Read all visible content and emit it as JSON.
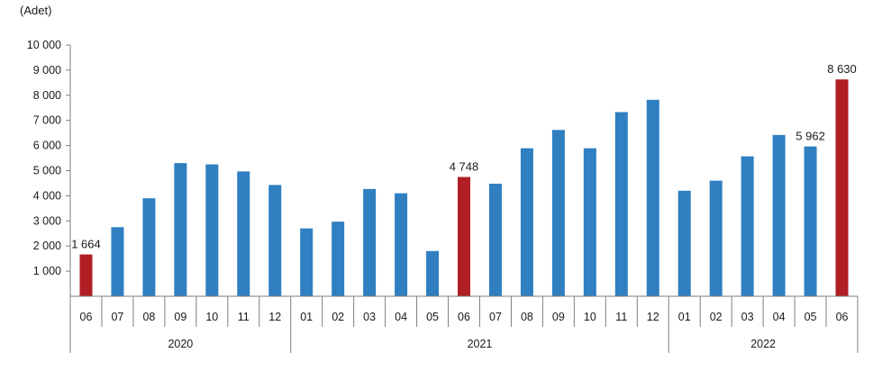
{
  "chart_data": {
    "type": "bar",
    "unit_label": "(Adet)",
    "yticks": [
      "1 000",
      "2 000",
      "3 000",
      "4 000",
      "5 000",
      "6 000",
      "7 000",
      "8 000",
      "9 000",
      "10 000"
    ],
    "ylim": [
      0,
      10000
    ],
    "categories": [
      "06",
      "07",
      "08",
      "09",
      "10",
      "11",
      "12",
      "01",
      "02",
      "03",
      "04",
      "05",
      "06",
      "07",
      "08",
      "09",
      "10",
      "11",
      "12",
      "01",
      "02",
      "03",
      "04",
      "05",
      "06"
    ],
    "values": [
      1664,
      2750,
      3900,
      5300,
      5250,
      4970,
      4430,
      2700,
      2970,
      4270,
      4100,
      1800,
      4748,
      4480,
      5890,
      6620,
      5890,
      7330,
      7820,
      4200,
      4600,
      5570,
      6420,
      5962,
      8630
    ],
    "highlighted": [
      true,
      false,
      false,
      false,
      false,
      false,
      false,
      false,
      false,
      false,
      false,
      false,
      true,
      false,
      false,
      false,
      false,
      false,
      false,
      false,
      false,
      false,
      false,
      false,
      true
    ],
    "data_labels": [
      {
        "index": 0,
        "text": "1 664"
      },
      {
        "index": 12,
        "text": "4 748"
      },
      {
        "index": 23,
        "text": "5 962"
      },
      {
        "index": 24,
        "text": "8 630"
      }
    ],
    "year_groups": [
      {
        "label": "2020",
        "start": 0,
        "end": 6
      },
      {
        "label": "2021",
        "start": 7,
        "end": 18
      },
      {
        "label": "2022",
        "start": 19,
        "end": 24
      }
    ],
    "colors": {
      "bar": "#2f7fc1",
      "highlight": "#b01f24",
      "axis": "#7f7f7f"
    },
    "grid": false,
    "legend": "none"
  }
}
